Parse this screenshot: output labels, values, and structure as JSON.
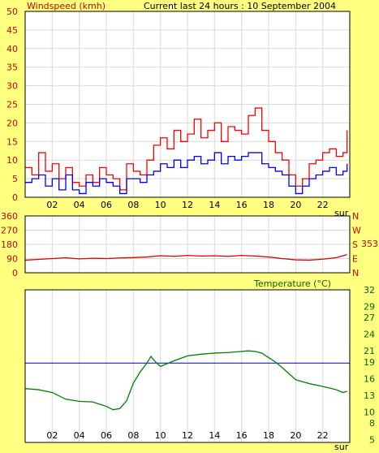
{
  "header": {
    "title": "Current last 24 hours : 10 September 2004"
  },
  "colors": {
    "background": "#FFFF80",
    "plot_area": "#FFFFFF",
    "gust": "#FF0000",
    "average": "#0000FF",
    "direction": "#DD0000",
    "temperature": "#008000",
    "reference_line": "#0000CC",
    "red_text": "#CC0000",
    "green_text": "#006600"
  },
  "chart_data": [
    {
      "type": "line",
      "title": "Windspeed (kmh)",
      "ylabel": "Windspeed (kmh)",
      "xlabel": "sur",
      "x_ticks": [
        "02",
        "04",
        "06",
        "08",
        "10",
        "12",
        "14",
        "16",
        "18",
        "20",
        "22"
      ],
      "y_ticks": [
        0,
        5,
        10,
        15,
        20,
        25,
        30,
        35,
        40,
        45,
        50
      ],
      "xlim": [
        0,
        24
      ],
      "ylim": [
        0,
        50
      ],
      "grid": true,
      "series": [
        {
          "color": "#FF0000",
          "x": [
            0,
            0.5,
            1,
            1.5,
            2,
            2.5,
            3,
            3.5,
            4,
            4.5,
            5,
            5.5,
            6,
            6.5,
            7,
            7.5,
            8,
            8.5,
            9,
            9.5,
            10,
            10.5,
            11,
            11.5,
            12,
            12.5,
            13,
            13.5,
            14,
            14.5,
            15,
            15.5,
            16,
            16.5,
            17,
            17.5,
            18,
            18.5,
            19,
            19.5,
            20,
            20.5,
            21,
            21.5,
            22,
            22.5,
            23,
            23.5,
            23.8
          ],
          "values": [
            8,
            6,
            12,
            7,
            9,
            5,
            8,
            4,
            3,
            6,
            4,
            8,
            6,
            5,
            2,
            9,
            7,
            6,
            10,
            14,
            16,
            13,
            18,
            15,
            17,
            21,
            16,
            18,
            20,
            15,
            19,
            18,
            17,
            22,
            24,
            18,
            15,
            12,
            10,
            6,
            3,
            5,
            9,
            10,
            12,
            13,
            11,
            12,
            18
          ]
        },
        {
          "color": "#0000FF",
          "x": [
            0,
            0.5,
            1,
            1.5,
            2,
            2.5,
            3,
            3.5,
            4,
            4.5,
            5,
            5.5,
            6,
            6.5,
            7,
            7.5,
            8,
            8.5,
            9,
            9.5,
            10,
            10.5,
            11,
            11.5,
            12,
            12.5,
            13,
            13.5,
            14,
            14.5,
            15,
            15.5,
            16,
            16.5,
            17,
            17.5,
            18,
            18.5,
            19,
            19.5,
            20,
            20.5,
            21,
            21.5,
            22,
            22.5,
            23,
            23.5,
            23.8
          ],
          "values": [
            4,
            5,
            6,
            3,
            5,
            2,
            6,
            2,
            1,
            4,
            3,
            5,
            4,
            3,
            1,
            5,
            5,
            4,
            6,
            7,
            9,
            8,
            10,
            8,
            10,
            11,
            9,
            10,
            12,
            9,
            11,
            10,
            11,
            12,
            12,
            9,
            8,
            7,
            6,
            3,
            1,
            3,
            5,
            6,
            7,
            8,
            6,
            7,
            9
          ]
        }
      ]
    },
    {
      "type": "line",
      "x_ticks": [
        "02",
        "04",
        "06",
        "08",
        "10",
        "12",
        "14",
        "16",
        "18",
        "20",
        "22"
      ],
      "y_ticks": [
        0,
        90,
        180,
        270,
        360
      ],
      "right_labels": [
        "N",
        "W",
        "S",
        "E",
        "N"
      ],
      "value_label": "353",
      "xlim": [
        0,
        24
      ],
      "ylim": [
        0,
        360
      ],
      "grid": true,
      "series": [
        {
          "color": "#DD0000",
          "x": [
            0,
            1,
            2,
            3,
            4,
            5,
            6,
            7,
            8,
            9,
            10,
            11,
            12,
            13,
            14,
            15,
            16,
            17,
            18,
            19,
            20,
            21,
            22,
            23,
            23.8
          ],
          "values": [
            80,
            85,
            90,
            95,
            88,
            92,
            90,
            94,
            96,
            100,
            108,
            104,
            110,
            106,
            108,
            104,
            110,
            106,
            100,
            90,
            82,
            80,
            86,
            96,
            115
          ]
        }
      ]
    },
    {
      "type": "line",
      "title": "Temperature (°C)",
      "x_ticks": [
        "02",
        "04",
        "06",
        "08",
        "10",
        "12",
        "14",
        "16",
        "18",
        "20",
        "22"
      ],
      "xlabel": "sur",
      "y_ticks": [
        5,
        8,
        10,
        13,
        16,
        19,
        21,
        24,
        27,
        29,
        32
      ],
      "xlim": [
        0,
        24
      ],
      "ylim": [
        4.5,
        32
      ],
      "reference_value": 18.8,
      "grid": true,
      "series": [
        {
          "color": "#008000",
          "x": [
            0,
            1,
            2,
            3,
            4,
            5,
            6,
            6.5,
            7,
            7.5,
            8,
            8.5,
            9,
            9.3,
            9.6,
            10,
            11,
            12,
            13,
            14,
            15,
            16,
            16.5,
            17,
            17.5,
            18,
            18.5,
            19,
            19.5,
            20,
            21,
            22,
            23,
            23.5,
            23.8
          ],
          "values": [
            14.2,
            14,
            13.5,
            12.3,
            11.9,
            11.8,
            11,
            10.4,
            10.6,
            12,
            15.2,
            17.2,
            18.8,
            20,
            19.1,
            18.2,
            19.2,
            20.1,
            20.4,
            20.6,
            20.7,
            20.9,
            21,
            20.9,
            20.6,
            19.8,
            19,
            18,
            16.9,
            15.8,
            15.1,
            14.6,
            14,
            13.5,
            13.7
          ]
        }
      ]
    }
  ]
}
